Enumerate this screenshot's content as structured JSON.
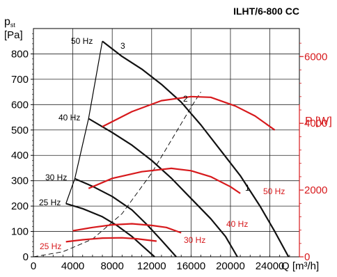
{
  "chart_data": {
    "type": "line",
    "title": "ILHT/6-800 CC",
    "y_left": {
      "label_main": "p",
      "label_sub": "st",
      "unit": "[Pa]",
      "range": [
        0,
        900
      ],
      "ticks": [
        0,
        100,
        200,
        300,
        400,
        500,
        600,
        700,
        800
      ],
      "tick_labels": [
        "0",
        "100",
        "200",
        "300",
        "400",
        "500",
        "600",
        "700",
        "800"
      ],
      "color": "#000000"
    },
    "y_right": {
      "label": "P [W]",
      "range": [
        0,
        6840
      ],
      "ticks": [
        0,
        2000,
        4000,
        6000
      ],
      "tick_labels": [
        "0",
        "2000",
        "4000",
        "6000"
      ],
      "color": "#d7191c"
    },
    "x": {
      "label": "Q [m³/h]",
      "range": [
        0,
        27000
      ],
      "ticks": [
        0,
        4000,
        8000,
        12000,
        16000,
        20000,
        24000
      ],
      "tick_labels": [
        "0",
        "4000",
        "8000",
        "12000",
        "16000",
        "20000",
        "24000"
      ],
      "grid": true
    },
    "pressure_series": [
      {
        "name": "50 Hz",
        "points": [
          [
            7000,
            850
          ],
          [
            9000,
            790
          ],
          [
            11000,
            740
          ],
          [
            13000,
            680
          ],
          [
            15000,
            610
          ],
          [
            17000,
            520
          ],
          [
            19000,
            420
          ],
          [
            21000,
            320
          ],
          [
            23000,
            200
          ],
          [
            24500,
            100
          ],
          [
            25900,
            0
          ]
        ]
      },
      {
        "name": "40 Hz",
        "points": [
          [
            5600,
            545
          ],
          [
            8000,
            490
          ],
          [
            10000,
            440
          ],
          [
            12000,
            380
          ],
          [
            14000,
            310
          ],
          [
            16000,
            230
          ],
          [
            18000,
            150
          ],
          [
            19500,
            80
          ],
          [
            20700,
            0
          ]
        ]
      },
      {
        "name": "30 Hz",
        "points": [
          [
            4200,
            308
          ],
          [
            6000,
            278
          ],
          [
            8000,
            238
          ],
          [
            10000,
            185
          ],
          [
            11500,
            128
          ],
          [
            13000,
            65
          ],
          [
            14500,
            0
          ]
        ]
      },
      {
        "name": "25 Hz",
        "points": [
          [
            3300,
            210
          ],
          [
            5000,
            190
          ],
          [
            7000,
            158
          ],
          [
            8500,
            123
          ],
          [
            10000,
            80
          ],
          [
            11000,
            45
          ],
          [
            12300,
            0
          ]
        ]
      }
    ],
    "power_series": [
      {
        "name": "50 Hz",
        "points": [
          [
            7000,
            3900
          ],
          [
            10000,
            4350
          ],
          [
            13000,
            4680
          ],
          [
            16000,
            4800
          ],
          [
            18000,
            4780
          ],
          [
            20500,
            4520
          ],
          [
            22500,
            4220
          ],
          [
            24500,
            3800
          ]
        ]
      },
      {
        "name": "40 Hz",
        "points": [
          [
            5600,
            2050
          ],
          [
            8000,
            2350
          ],
          [
            11000,
            2550
          ],
          [
            14000,
            2650
          ],
          [
            16000,
            2580
          ],
          [
            18000,
            2400
          ],
          [
            20000,
            2100
          ],
          [
            21000,
            1900
          ]
        ]
      },
      {
        "name": "30 Hz",
        "points": [
          [
            4000,
            780
          ],
          [
            6000,
            880
          ],
          [
            8000,
            960
          ],
          [
            10000,
            990
          ],
          [
            12000,
            940
          ],
          [
            13500,
            880
          ],
          [
            15000,
            720
          ]
        ]
      },
      {
        "name": "25 Hz",
        "points": [
          [
            3300,
            450
          ],
          [
            5000,
            510
          ],
          [
            7000,
            560
          ],
          [
            9000,
            570
          ],
          [
            10500,
            540
          ],
          [
            12500,
            470
          ]
        ]
      }
    ],
    "frequency_boundary": [
      [
        3300,
        210
      ],
      [
        4200,
        308
      ],
      [
        5600,
        545
      ],
      [
        7000,
        850
      ]
    ],
    "system_line_2": [
      [
        0,
        0
      ],
      [
        3000,
        20
      ],
      [
        6000,
        70
      ],
      [
        9000,
        170
      ],
      [
        12000,
        330
      ],
      [
        14000,
        460
      ],
      [
        16000,
        590
      ],
      [
        17000,
        650
      ]
    ],
    "annotations": {
      "pressure_labels": [
        "50 Hz",
        "40 Hz",
        "30 Hz",
        "25 Hz"
      ],
      "power_labels": [
        "50 Hz",
        "40 Hz",
        "30 Hz",
        "25 Hz"
      ],
      "curve_numbers": [
        "1",
        "2",
        "3"
      ]
    }
  }
}
